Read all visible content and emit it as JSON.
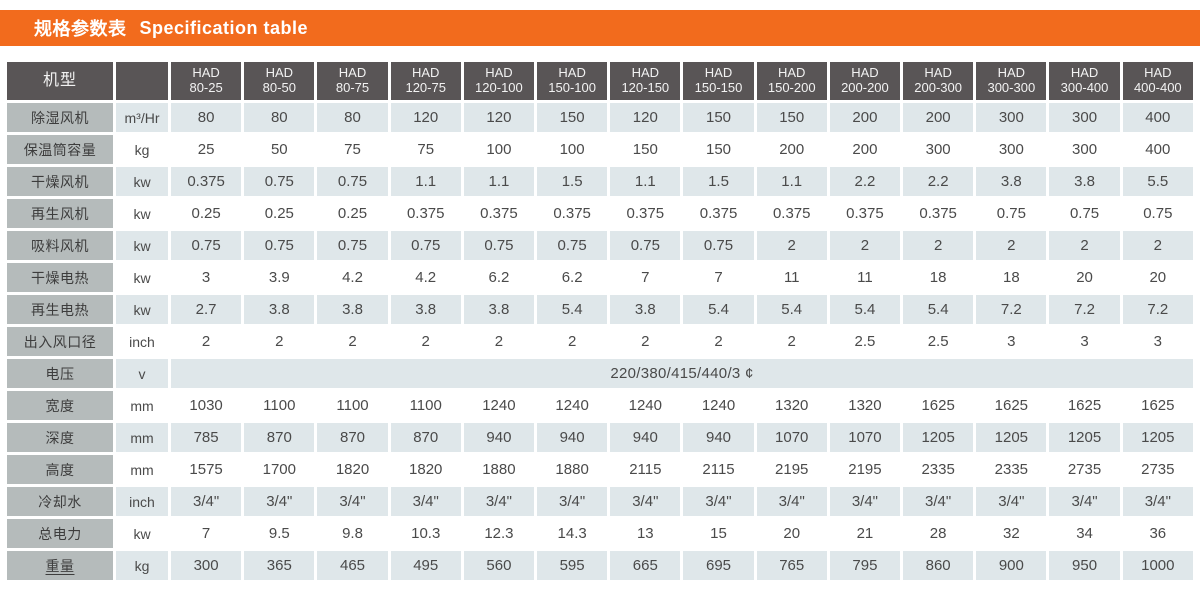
{
  "header": {
    "title_cn": "规格参数表",
    "title_en": "Specification table"
  },
  "table": {
    "corner_label": "机型",
    "models": [
      {
        "brand": "HAD",
        "code": "80-25"
      },
      {
        "brand": "HAD",
        "code": "80-50"
      },
      {
        "brand": "HAD",
        "code": "80-75"
      },
      {
        "brand": "HAD",
        "code": "120-75"
      },
      {
        "brand": "HAD",
        "code": "120-100"
      },
      {
        "brand": "HAD",
        "code": "150-100"
      },
      {
        "brand": "HAD",
        "code": "120-150"
      },
      {
        "brand": "HAD",
        "code": "150-150"
      },
      {
        "brand": "HAD",
        "code": "150-200"
      },
      {
        "brand": "HAD",
        "code": "200-200"
      },
      {
        "brand": "HAD",
        "code": "200-300"
      },
      {
        "brand": "HAD",
        "code": "300-300"
      },
      {
        "brand": "HAD",
        "code": "300-400"
      },
      {
        "brand": "HAD",
        "code": "400-400"
      }
    ],
    "rows": [
      {
        "label": "除湿风机",
        "unit": "m³/Hr",
        "values": [
          "80",
          "80",
          "80",
          "120",
          "120",
          "150",
          "120",
          "150",
          "150",
          "200",
          "200",
          "300",
          "300",
          "400"
        ]
      },
      {
        "label": "保温筒容量",
        "unit": "kg",
        "values": [
          "25",
          "50",
          "75",
          "75",
          "100",
          "100",
          "150",
          "150",
          "200",
          "200",
          "300",
          "300",
          "300",
          "400"
        ]
      },
      {
        "label": "干燥风机",
        "unit": "kw",
        "values": [
          "0.375",
          "0.75",
          "0.75",
          "1.1",
          "1.1",
          "1.5",
          "1.1",
          "1.5",
          "1.1",
          "2.2",
          "2.2",
          "3.8",
          "3.8",
          "5.5"
        ]
      },
      {
        "label": "再生风机",
        "unit": "kw",
        "values": [
          "0.25",
          "0.25",
          "0.25",
          "0.375",
          "0.375",
          "0.375",
          "0.375",
          "0.375",
          "0.375",
          "0.375",
          "0.375",
          "0.75",
          "0.75",
          "0.75"
        ]
      },
      {
        "label": "吸料风机",
        "unit": "kw",
        "values": [
          "0.75",
          "0.75",
          "0.75",
          "0.75",
          "0.75",
          "0.75",
          "0.75",
          "0.75",
          "2",
          "2",
          "2",
          "2",
          "2",
          "2"
        ]
      },
      {
        "label": "干燥电热",
        "unit": "kw",
        "values": [
          "3",
          "3.9",
          "4.2",
          "4.2",
          "6.2",
          "6.2",
          "7",
          "7",
          "11",
          "11",
          "18",
          "18",
          "20",
          "20"
        ]
      },
      {
        "label": "再生电热",
        "unit": "kw",
        "values": [
          "2.7",
          "3.8",
          "3.8",
          "3.8",
          "3.8",
          "5.4",
          "3.8",
          "5.4",
          "5.4",
          "5.4",
          "5.4",
          "7.2",
          "7.2",
          "7.2"
        ]
      },
      {
        "label": "出入风口径",
        "unit": "inch",
        "values": [
          "2",
          "2",
          "2",
          "2",
          "2",
          "2",
          "2",
          "2",
          "2",
          "2.5",
          "2.5",
          "3",
          "3",
          "3"
        ]
      },
      {
        "label": "电压",
        "unit": "v",
        "merged_value": "220/380/415/440/3 ¢"
      },
      {
        "label": "宽度",
        "unit": "mm",
        "values": [
          "1030",
          "1100",
          "1100",
          "1100",
          "1240",
          "1240",
          "1240",
          "1240",
          "1320",
          "1320",
          "1625",
          "1625",
          "1625",
          "1625"
        ]
      },
      {
        "label": "深度",
        "unit": "mm",
        "values": [
          "785",
          "870",
          "870",
          "870",
          "940",
          "940",
          "940",
          "940",
          "1070",
          "1070",
          "1205",
          "1205",
          "1205",
          "1205"
        ]
      },
      {
        "label": "高度",
        "unit": "mm",
        "values": [
          "1575",
          "1700",
          "1820",
          "1820",
          "1880",
          "1880",
          "2115",
          "2115",
          "2195",
          "2195",
          "2335",
          "2335",
          "2735",
          "2735"
        ]
      },
      {
        "label": "冷却水",
        "unit": "inch",
        "values": [
          "3/4\"",
          "3/4\"",
          "3/4\"",
          "3/4\"",
          "3/4\"",
          "3/4\"",
          "3/4\"",
          "3/4\"",
          "3/4\"",
          "3/4\"",
          "3/4\"",
          "3/4\"",
          "3/4\"",
          "3/4\""
        ]
      },
      {
        "label": "总电力",
        "unit": "kw",
        "values": [
          "7",
          "9.5",
          "9.8",
          "10.3",
          "12.3",
          "14.3",
          "13",
          "15",
          "20",
          "21",
          "28",
          "32",
          "34",
          "36"
        ]
      },
      {
        "label": "重量",
        "unit": "kg",
        "underline": true,
        "values": [
          "300",
          "365",
          "465",
          "495",
          "560",
          "595",
          "665",
          "695",
          "765",
          "795",
          "860",
          "900",
          "950",
          "1000"
        ]
      }
    ]
  },
  "colors": {
    "accent_orange": "#f26b1d",
    "header_dark": "#595556",
    "label_gray": "#b5bbbb",
    "row_shaded": "#dfe7ea",
    "row_white": "#ffffff",
    "text_dark": "#4a4a4a"
  }
}
